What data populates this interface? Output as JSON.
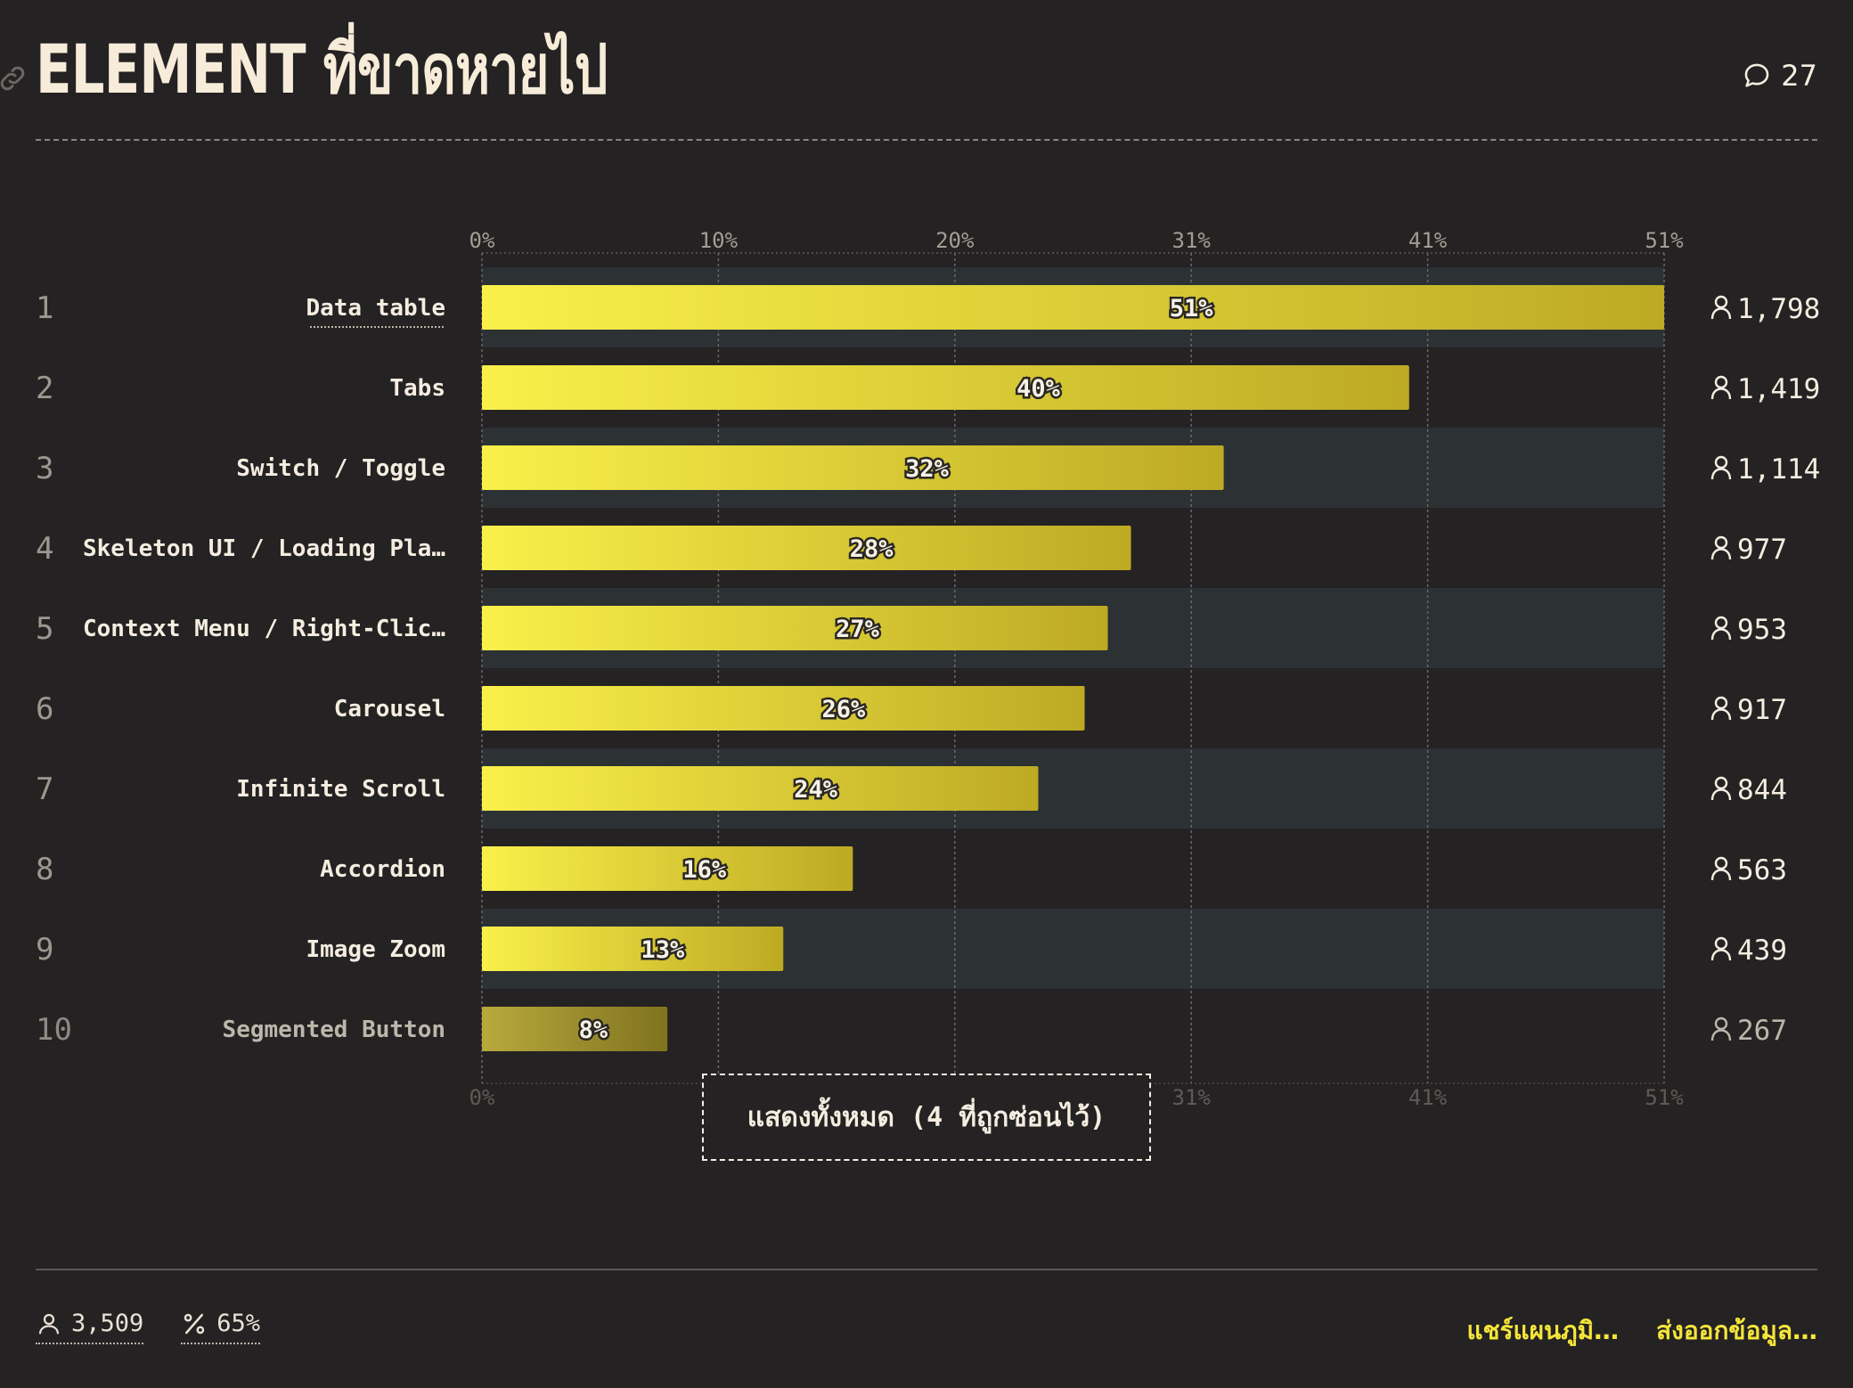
{
  "header": {
    "title": "ELEMENT ที่ขาดหายไป",
    "comment_count": "27"
  },
  "show_all_label": "แสดงทั้งหมด (4 ที่ถูกซ่อนไว้)",
  "footer": {
    "respondents": "3,509",
    "percent": "65%",
    "share_label": "แชร์แผนภูมิ…",
    "export_label": "ส่งออกข้อมูล…"
  },
  "colors": {
    "background": "#252223",
    "bar_start": "#f9f04a",
    "bar_end": "#bdaa24",
    "row_band": "#2c3134",
    "text": "#f4ede0"
  },
  "chart_data": {
    "type": "bar",
    "orientation": "horizontal",
    "title": "ELEMENT ที่ขาดหายไป",
    "xlim": [
      0,
      51
    ],
    "ticks": [
      "0%",
      "10%",
      "20%",
      "31%",
      "41%",
      "51%"
    ],
    "tick_values": [
      0,
      10.2,
      20.4,
      30.6,
      40.8,
      51
    ],
    "grid": true,
    "categories": [
      "Data table",
      "Tabs",
      "Switch / Toggle",
      "Skeleton UI / Loading Pla…",
      "Context Menu / Right-Clic…",
      "Carousel",
      "Infinite Scroll",
      "Accordion",
      "Image Zoom",
      "Segmented Button"
    ],
    "ranks": [
      "1",
      "2",
      "3",
      "4",
      "5",
      "6",
      "7",
      "8",
      "9",
      "10"
    ],
    "values": [
      51,
      40,
      32,
      28,
      27,
      26,
      24,
      16,
      13,
      8
    ],
    "labels": [
      "51%",
      "40%",
      "32%",
      "28%",
      "27%",
      "26%",
      "24%",
      "16%",
      "13%",
      "8%"
    ],
    "counts": [
      "1,798",
      "1,419",
      "1,114",
      "977",
      "953",
      "917",
      "844",
      "563",
      "439",
      "267"
    ]
  }
}
